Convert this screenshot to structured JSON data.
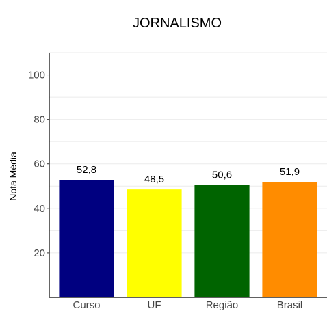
{
  "chart_data": {
    "type": "bar",
    "title": "JORNALISMO",
    "xlabel": "",
    "ylabel": "Nota Média",
    "categories": [
      "Curso",
      "UF",
      "Região",
      "Brasil"
    ],
    "values": [
      52.8,
      48.5,
      50.6,
      51.9
    ],
    "value_labels": [
      "52,8",
      "48,5",
      "50,6",
      "51,9"
    ],
    "colors": [
      "#000080",
      "#ffff00",
      "#006400",
      "#ff8c00"
    ],
    "ylim": [
      0,
      110
    ],
    "yticks": [
      20,
      40,
      60,
      80,
      100
    ],
    "ytick_labels": [
      "20",
      "40",
      "60",
      "80",
      "100"
    ],
    "grid": true,
    "legend": "none"
  }
}
